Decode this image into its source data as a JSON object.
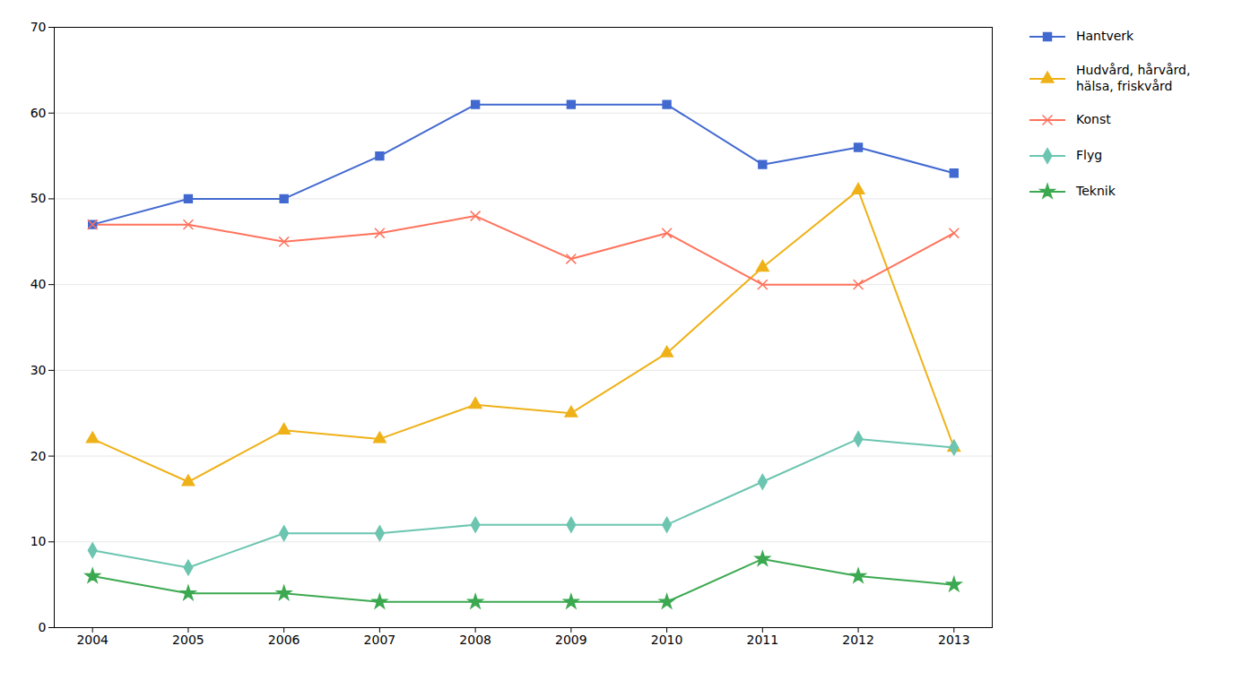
{
  "chart_data": {
    "type": "line",
    "x": [
      2004,
      2005,
      2006,
      2007,
      2008,
      2009,
      2010,
      2011,
      2012,
      2013
    ],
    "xlim": [
      2003.6,
      2013.4
    ],
    "xticks": [
      2004,
      2005,
      2006,
      2007,
      2008,
      2009,
      2010,
      2011,
      2012,
      2013
    ],
    "ylim": [
      0,
      70
    ],
    "yticks": [
      0,
      10,
      20,
      30,
      40,
      50,
      60,
      70
    ],
    "grid": "y",
    "legend": "right",
    "series": [
      {
        "name": "Hantverk",
        "marker": "square",
        "values": [
          47,
          50,
          50,
          55,
          61,
          61,
          61,
          54,
          56,
          53
        ]
      },
      {
        "name": "Hudvård, hårvård,\nhälsa, friskvård",
        "marker": "triangle",
        "values": [
          22,
          17,
          23,
          22,
          26,
          25,
          32,
          42,
          51,
          21
        ]
      },
      {
        "name": "Konst",
        "marker": "times",
        "values": [
          47,
          47,
          45,
          46,
          48,
          43,
          46,
          40,
          40,
          46
        ]
      },
      {
        "name": "Flyg",
        "marker": "diamond",
        "values": [
          9,
          7,
          11,
          11,
          12,
          12,
          12,
          17,
          22,
          21
        ]
      },
      {
        "name": "Teknik",
        "marker": "star",
        "values": [
          6,
          4,
          4,
          3,
          3,
          3,
          3,
          8,
          6,
          5
        ]
      }
    ]
  }
}
